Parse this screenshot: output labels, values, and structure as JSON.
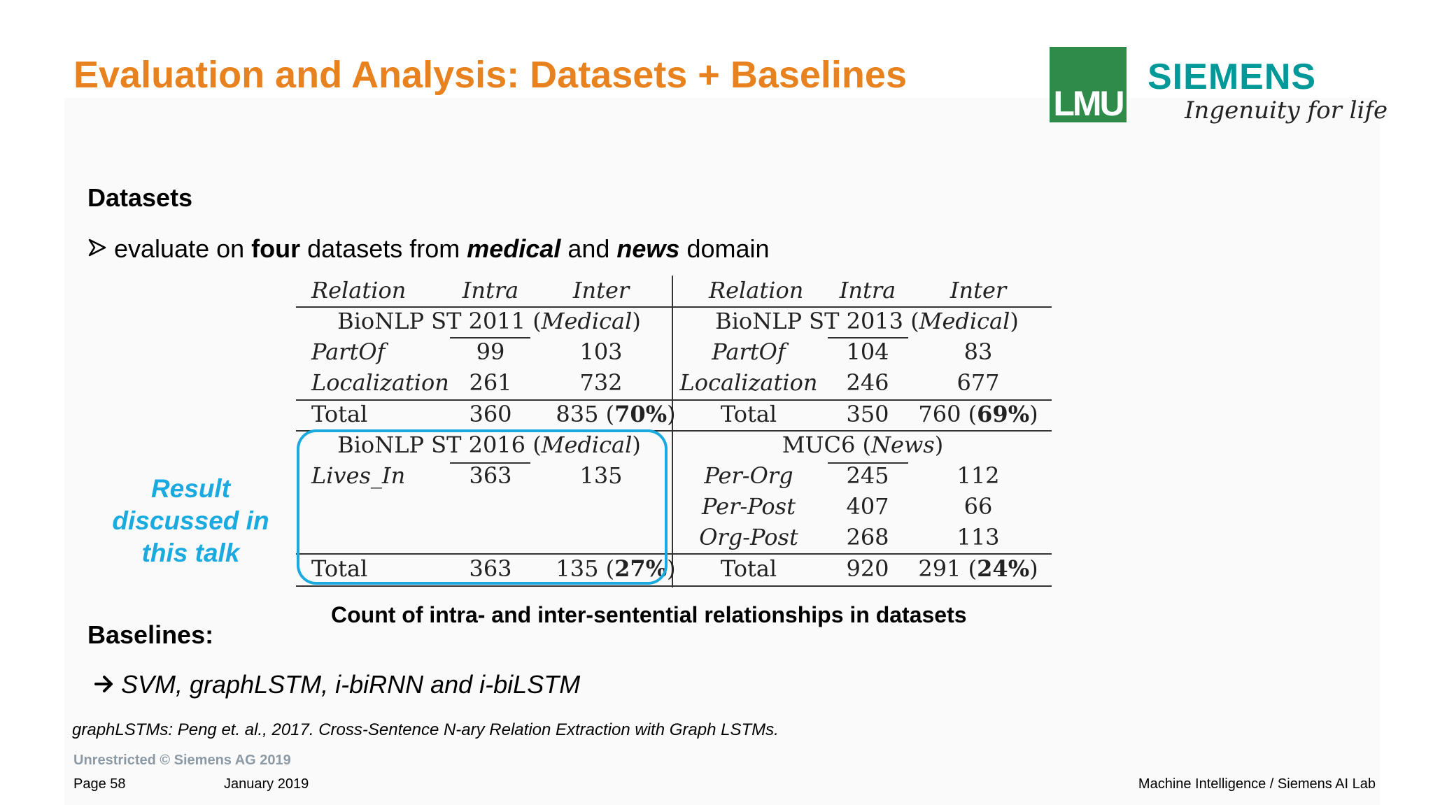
{
  "title": "Evaluation and Analysis: Datasets + Baselines",
  "logos": {
    "lmu": "LMU",
    "siemens": "SIEMENS",
    "tagline": "Ingenuity for life",
    "lmu_color": "#2e8b4a",
    "siemens_color": "#009999"
  },
  "datasets": {
    "heading": "Datasets",
    "bullet_icon": "arrowhead-bullet-icon",
    "bullet_parts": [
      "evaluate on ",
      "four",
      " datasets from ",
      "medical",
      " and ",
      "news",
      " domain"
    ]
  },
  "table": {
    "headers": {
      "relation": "Relation",
      "intra": "Intra",
      "inter": "Inter"
    },
    "blocks": [
      {
        "name": "BioNLP ST 2011",
        "domain": "Medical",
        "rows": [
          {
            "relation": "PartOf",
            "intra": "99",
            "inter": "103"
          },
          {
            "relation": "Localization",
            "intra": "261",
            "inter": "732"
          }
        ],
        "total": {
          "label": "Total",
          "intra": "360",
          "inter": "835",
          "pct": "70%"
        }
      },
      {
        "name": "BioNLP ST 2013",
        "domain": "Medical",
        "rows": [
          {
            "relation": "PartOf",
            "intra": "104",
            "inter": "83"
          },
          {
            "relation": "Localization",
            "intra": "246",
            "inter": "677"
          }
        ],
        "total": {
          "label": "Total",
          "intra": "350",
          "inter": "760",
          "pct": "69%"
        }
      },
      {
        "name": "BioNLP ST 2016",
        "domain": "Medical",
        "rows": [
          {
            "relation": "Lives_In",
            "intra": "363",
            "inter": "135"
          }
        ],
        "total": {
          "label": "Total",
          "intra": "363",
          "inter": "135",
          "pct": "27%"
        }
      },
      {
        "name": "MUC6",
        "domain": "News",
        "rows": [
          {
            "relation": "Per-Org",
            "intra": "245",
            "inter": "112"
          },
          {
            "relation": "Per-Post",
            "intra": "407",
            "inter": "66"
          },
          {
            "relation": "Org-Post",
            "intra": "268",
            "inter": "113"
          }
        ],
        "total": {
          "label": "Total",
          "intra": "920",
          "inter": "291",
          "pct": "24%"
        }
      }
    ],
    "caption": "Count of intra- and inter-sentential relationships in datasets"
  },
  "highlight": {
    "note_lines": [
      "Result",
      "discussed in",
      "this talk"
    ],
    "color": "#1aaae0"
  },
  "baselines": {
    "heading": "Baselines:",
    "arrow_icon": "right-arrow-icon",
    "text": "SVM, graphLSTM, i-biRNN and i-biLSTM"
  },
  "reference": "graphLSTMs: Peng et. al., 2017. Cross-Sentence N-ary Relation Extraction with Graph LSTMs.",
  "footer": {
    "classification": "Unrestricted © Siemens AG 2019",
    "page": "Page 58",
    "date": "January 2019",
    "department": "Machine Intelligence / Siemens AI Lab"
  },
  "colors": {
    "title": "#e8821f",
    "accent": "#1aaae0"
  }
}
